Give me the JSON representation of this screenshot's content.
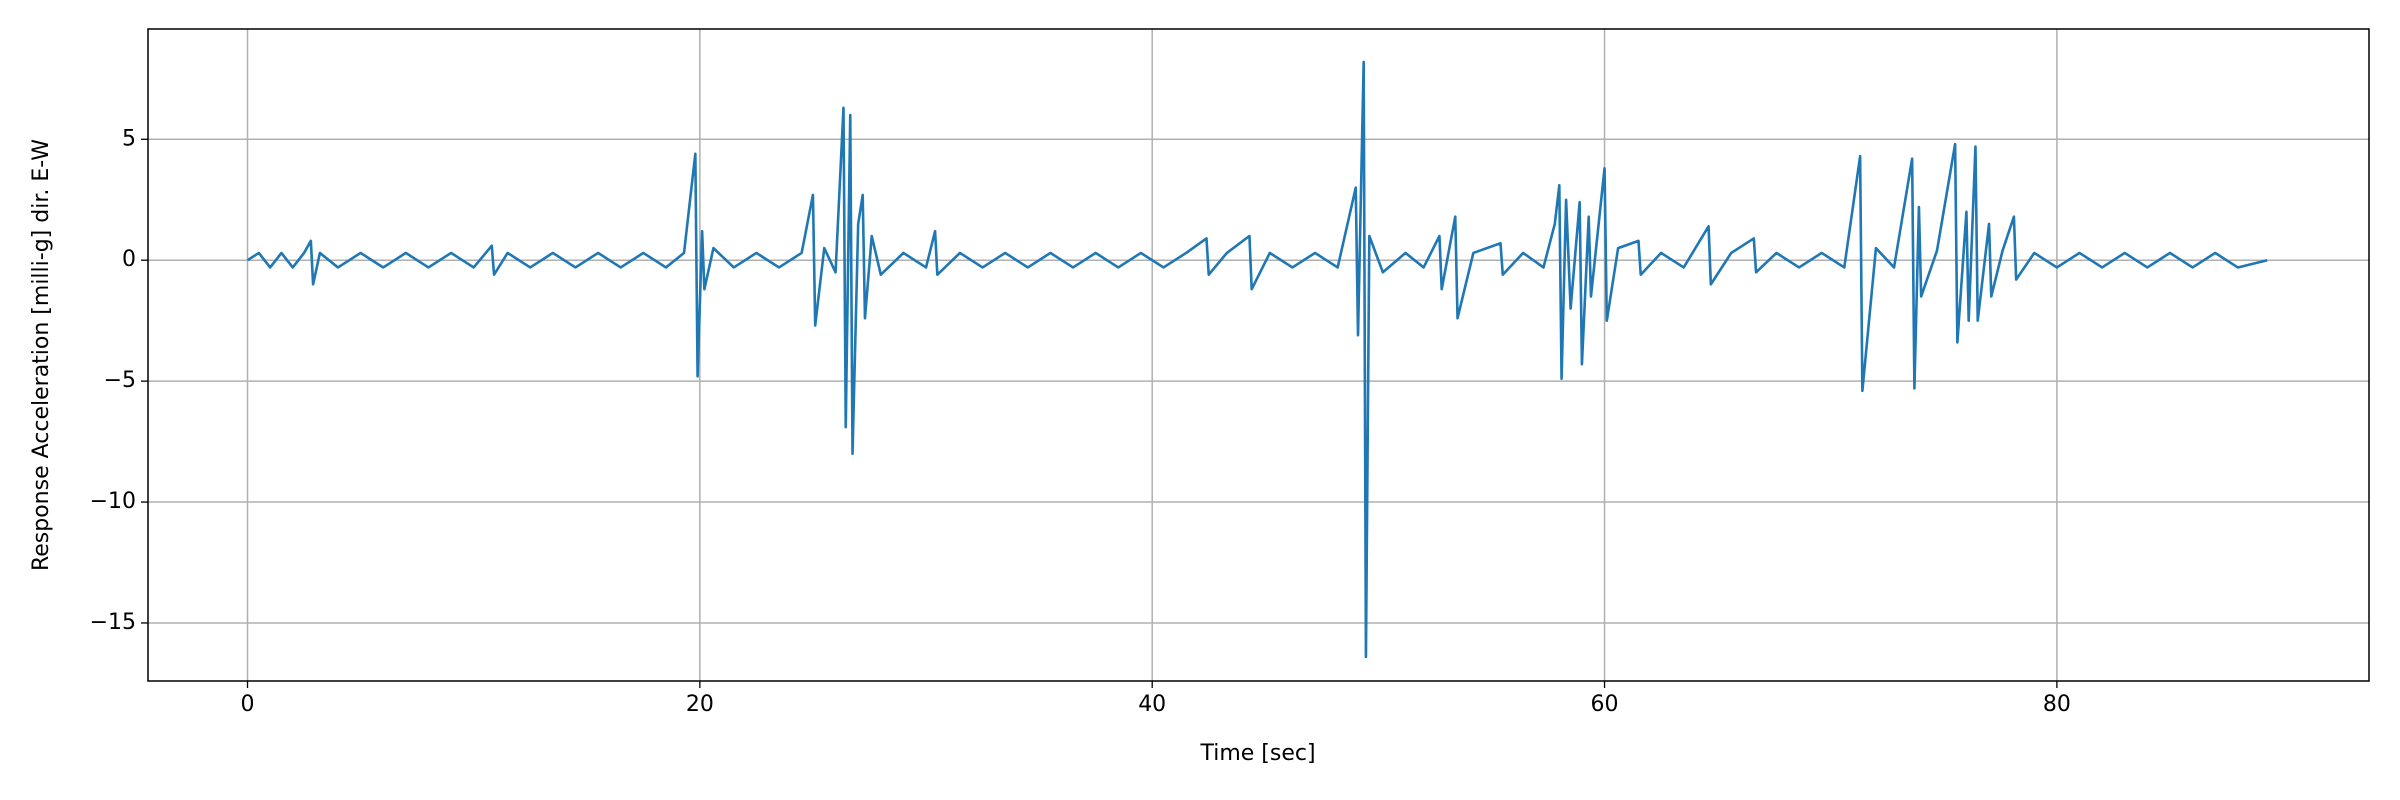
{
  "chart_data": {
    "type": "line",
    "x_label": "Time [sec]",
    "y_label": "Response Acceleration [milli-g] dir. E-W",
    "x": [
      0,
      0.5,
      1,
      1.5,
      2,
      2.5,
      2.8,
      2.9,
      3.2,
      4,
      5,
      6,
      7,
      8,
      9,
      10,
      10.8,
      10.9,
      11.5,
      12.5,
      13.5,
      14.5,
      15.5,
      16.5,
      17.5,
      18.5,
      19.3,
      19.8,
      19.9,
      20.1,
      20.2,
      20.6,
      21.5,
      22.5,
      23.5,
      24.5,
      25.0,
      25.1,
      25.5,
      26.0,
      26.35,
      26.45,
      26.65,
      26.75,
      27.0,
      27.2,
      27.3,
      27.6,
      28.0,
      29,
      30,
      30.4,
      30.5,
      31.5,
      32.5,
      33.5,
      34.5,
      35.5,
      36.5,
      37.5,
      38.5,
      39.5,
      40.5,
      41.5,
      42.4,
      42.5,
      43.3,
      44.3,
      44.4,
      45.2,
      46.2,
      47.2,
      48.2,
      49.0,
      49.1,
      49.35,
      49.45,
      49.6,
      50.2,
      51.2,
      52.0,
      52.7,
      52.8,
      53.4,
      53.5,
      54.2,
      55.4,
      55.5,
      56.4,
      57.3,
      57.8,
      58.0,
      58.1,
      58.3,
      58.5,
      58.9,
      59.0,
      59.3,
      59.4,
      60.0,
      60.1,
      60.6,
      61.5,
      61.6,
      62.5,
      63.5,
      64.6,
      64.7,
      65.6,
      66.6,
      66.7,
      67.6,
      68.6,
      69.6,
      70.6,
      71.3,
      71.4,
      72.0,
      72.8,
      73.6,
      73.7,
      73.9,
      74.0,
      74.7,
      75.5,
      75.6,
      76.0,
      76.1,
      76.4,
      76.5,
      77.0,
      77.1,
      77.6,
      78.1,
      78.2,
      79,
      80,
      81,
      82,
      83,
      84,
      85,
      86,
      87,
      88,
      89.3
    ],
    "series": [
      {
        "name": "E-W",
        "color": "#1f77b4",
        "values": [
          0,
          0.3,
          -0.3,
          0.3,
          -0.3,
          0.3,
          0.8,
          -1.0,
          0.3,
          -0.3,
          0.3,
          -0.3,
          0.3,
          -0.3,
          0.3,
          -0.3,
          0.6,
          -0.6,
          0.3,
          -0.3,
          0.3,
          -0.3,
          0.3,
          -0.3,
          0.3,
          -0.3,
          0.3,
          4.4,
          -4.8,
          1.2,
          -1.2,
          0.5,
          -0.3,
          0.3,
          -0.3,
          0.3,
          2.7,
          -2.7,
          0.5,
          -0.5,
          6.3,
          -6.9,
          6.0,
          -8.0,
          1.5,
          2.7,
          -2.4,
          1.0,
          -0.6,
          0.3,
          -0.3,
          1.2,
          -0.6,
          0.3,
          -0.3,
          0.3,
          -0.3,
          0.3,
          -0.3,
          0.3,
          -0.3,
          0.3,
          -0.3,
          0.3,
          0.9,
          -0.6,
          0.3,
          1.0,
          -1.2,
          0.3,
          -0.3,
          0.3,
          -0.3,
          3.0,
          -3.1,
          8.2,
          -16.4,
          1.0,
          -0.5,
          0.3,
          -0.3,
          1.0,
          -1.2,
          1.8,
          -2.4,
          0.3,
          0.7,
          -0.6,
          0.3,
          -0.3,
          1.5,
          3.1,
          -4.9,
          2.5,
          -2.0,
          2.4,
          -4.3,
          1.8,
          -1.5,
          3.8,
          -2.5,
          0.5,
          0.8,
          -0.6,
          0.3,
          -0.3,
          1.4,
          -1.0,
          0.3,
          0.9,
          -0.5,
          0.3,
          -0.3,
          0.3,
          -0.3,
          4.3,
          -5.4,
          0.5,
          -0.3,
          4.2,
          -5.3,
          2.2,
          -1.5,
          0.4,
          4.8,
          -3.4,
          2.0,
          -2.5,
          4.7,
          -2.5,
          1.5,
          -1.5,
          0.4,
          1.8,
          -0.8,
          0.3,
          -0.3,
          0.3,
          -0.3,
          0.3,
          -0.3,
          0.3,
          -0.3,
          0.3,
          -0.3,
          0
        ]
      }
    ],
    "xlim": [
      -4.4,
      93.8
    ],
    "ylim": [
      -17.4,
      9.56
    ],
    "xticks": [
      0,
      20,
      40,
      60,
      80
    ],
    "yticks": [
      {
        "value": -15,
        "label": "−15"
      },
      {
        "value": -10,
        "label": "−10"
      },
      {
        "value": -5,
        "label": "−5"
      },
      0,
      5
    ],
    "grid": true
  }
}
